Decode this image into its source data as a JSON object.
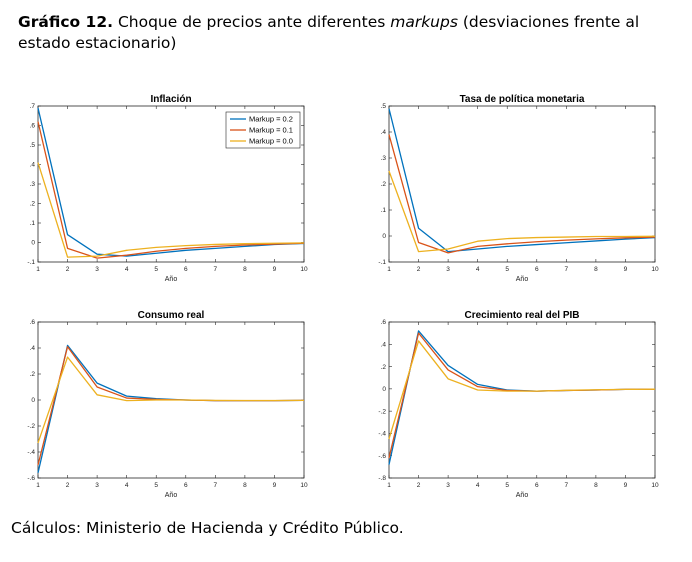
{
  "heading": {
    "number": "Gráfico 12.",
    "text_before": " Choque de precios ante diferentes ",
    "italic": "markups",
    "text_after": " (desviaciones frente al estado estacionario)"
  },
  "source": "Cálculos: Ministerio de Hacienda y Crédito Público.",
  "colors": {
    "Markup = 0.2": "#0072bd",
    "Markup = 0.1": "#d95319",
    "Markup = 0.0": "#edb120"
  },
  "chart_data": [
    {
      "type": "line",
      "title": "Inflación",
      "xlabel": "Año",
      "x": [
        1,
        2,
        3,
        4,
        5,
        6,
        7,
        8,
        9,
        10
      ],
      "xlim": [
        1,
        10
      ],
      "ylim": [
        -0.1,
        0.7
      ],
      "yticks": [
        -0.1,
        0,
        0.1,
        0.2,
        0.3,
        0.4,
        0.5,
        0.6,
        0.7
      ],
      "legend": "top-right",
      "series": [
        {
          "name": "Markup = 0.2",
          "values": [
            0.69,
            0.04,
            -0.06,
            -0.07,
            -0.055,
            -0.04,
            -0.03,
            -0.02,
            -0.01,
            -0.005
          ]
        },
        {
          "name": "Markup = 0.1",
          "values": [
            0.62,
            -0.03,
            -0.08,
            -0.065,
            -0.045,
            -0.03,
            -0.02,
            -0.013,
            -0.008,
            -0.004
          ]
        },
        {
          "name": "Markup = 0.0",
          "values": [
            0.41,
            -0.075,
            -0.07,
            -0.04,
            -0.025,
            -0.016,
            -0.01,
            -0.006,
            -0.004,
            -0.002
          ]
        }
      ]
    },
    {
      "type": "line",
      "title": "Tasa de política monetaria",
      "xlabel": "Año",
      "x": [
        1,
        2,
        3,
        4,
        5,
        6,
        7,
        8,
        9,
        10
      ],
      "xlim": [
        1,
        10
      ],
      "ylim": [
        -0.1,
        0.5
      ],
      "yticks": [
        -0.1,
        0,
        0.1,
        0.2,
        0.3,
        0.4,
        0.5
      ],
      "legend": "",
      "series": [
        {
          "name": "Markup = 0.2",
          "values": [
            0.49,
            0.03,
            -0.06,
            -0.05,
            -0.04,
            -0.033,
            -0.026,
            -0.019,
            -0.012,
            -0.006
          ]
        },
        {
          "name": "Markup = 0.1",
          "values": [
            0.39,
            -0.025,
            -0.065,
            -0.04,
            -0.03,
            -0.022,
            -0.016,
            -0.011,
            -0.007,
            -0.004
          ]
        },
        {
          "name": "Markup = 0.0",
          "values": [
            0.25,
            -0.06,
            -0.05,
            -0.02,
            -0.01,
            -0.006,
            -0.004,
            -0.002,
            -0.002,
            -0.001
          ]
        }
      ]
    },
    {
      "type": "line",
      "title": "Consumo real",
      "xlabel": "Año",
      "x": [
        1,
        2,
        3,
        4,
        5,
        6,
        7,
        8,
        9,
        10
      ],
      "xlim": [
        1,
        10
      ],
      "ylim": [
        -0.6,
        0.6
      ],
      "yticks": [
        -0.6,
        -0.4,
        -0.2,
        0,
        0.2,
        0.4,
        0.6
      ],
      "legend": "",
      "series": [
        {
          "name": "Markup = 0.2",
          "values": [
            -0.56,
            0.42,
            0.13,
            0.03,
            0.01,
            0.0,
            -0.005,
            -0.005,
            -0.005,
            -0.003
          ]
        },
        {
          "name": "Markup = 0.1",
          "values": [
            -0.5,
            0.41,
            0.1,
            0.015,
            0.005,
            0.0,
            -0.005,
            -0.005,
            -0.005,
            -0.003
          ]
        },
        {
          "name": "Markup = 0.0",
          "values": [
            -0.33,
            0.33,
            0.04,
            -0.005,
            0.0,
            0.0,
            -0.003,
            -0.004,
            -0.004,
            -0.003
          ]
        }
      ]
    },
    {
      "type": "line",
      "title": "Crecimiento real del PIB",
      "xlabel": "Año",
      "x": [
        1,
        2,
        3,
        4,
        5,
        6,
        7,
        8,
        9,
        10
      ],
      "xlim": [
        1,
        10
      ],
      "ylim": [
        -0.8,
        0.6
      ],
      "yticks": [
        -0.8,
        -0.6,
        -0.4,
        -0.2,
        0,
        0.2,
        0.4,
        0.6
      ],
      "legend": "",
      "series": [
        {
          "name": "Markup = 0.2",
          "values": [
            -0.68,
            0.52,
            0.21,
            0.04,
            -0.01,
            -0.02,
            -0.015,
            -0.01,
            -0.005,
            -0.003
          ]
        },
        {
          "name": "Markup = 0.1",
          "values": [
            -0.62,
            0.5,
            0.17,
            0.02,
            -0.015,
            -0.02,
            -0.015,
            -0.01,
            -0.005,
            -0.003
          ]
        },
        {
          "name": "Markup = 0.0",
          "values": [
            -0.45,
            0.43,
            0.09,
            -0.01,
            -0.02,
            -0.02,
            -0.013,
            -0.008,
            -0.005,
            -0.003
          ]
        }
      ]
    }
  ]
}
